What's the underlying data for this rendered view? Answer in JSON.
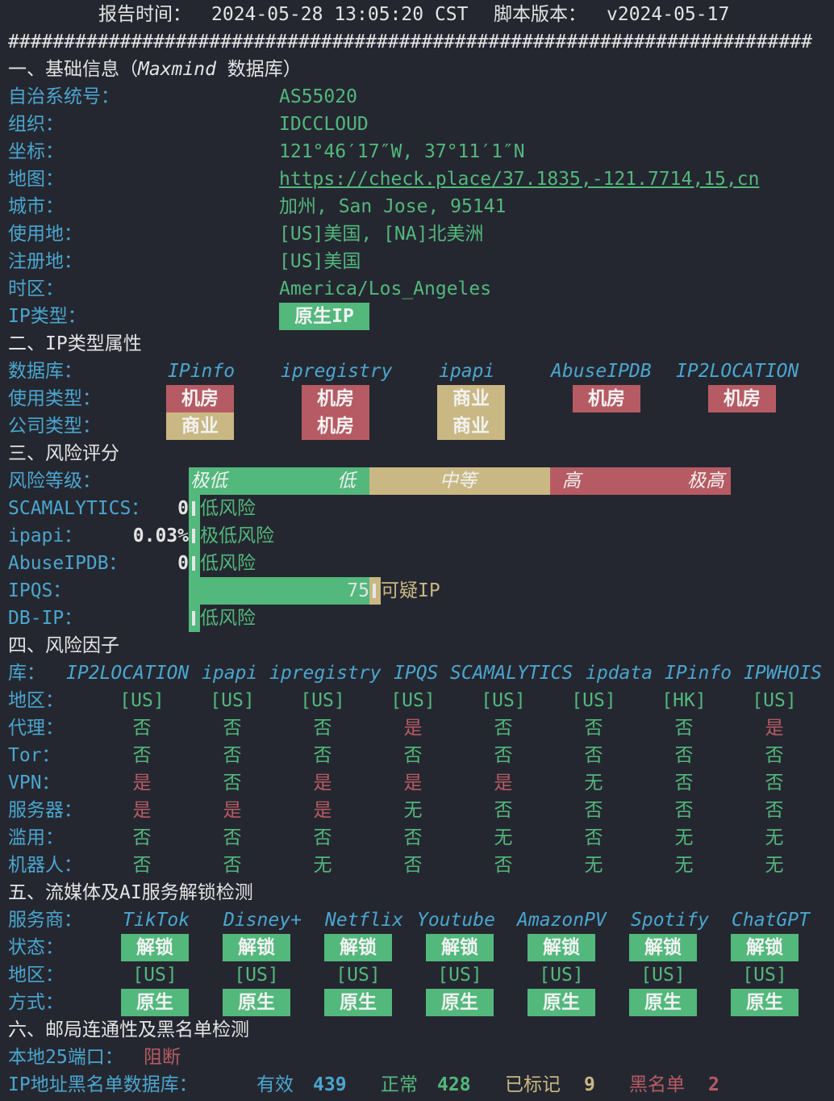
{
  "header": {
    "report_time_label": "报告时间：",
    "report_time": "2024-05-28 13:05:20 CST",
    "version_label": "脚本版本：",
    "version": "v2024-05-17",
    "separator": "########################################################################"
  },
  "basic": {
    "title": "一、基础信息（",
    "title_italic": "Maxmind",
    "title_end": " 数据库）",
    "rows": [
      {
        "label": "自治系统号：",
        "value": "AS55020"
      },
      {
        "label": "组织：",
        "value": "IDCCLOUD"
      },
      {
        "label": "坐标：",
        "value": "121°46′17″W, 37°11′1″N"
      },
      {
        "label": "地图：",
        "value": "https://check.place/37.1835,-121.7714,15,cn"
      },
      {
        "label": "城市：",
        "value": "加州, San Jose, 95141"
      },
      {
        "label": "使用地：",
        "value": "[US]美国, [NA]北美洲"
      },
      {
        "label": "注册地：",
        "value": "[US]美国"
      },
      {
        "label": "时区：",
        "value": "America/Los_Angeles"
      },
      {
        "label": "IP类型：",
        "value": "原生IP"
      }
    ]
  },
  "ip_type": {
    "title": "二、IP类型属性",
    "db_label": "数据库：",
    "usage_label": "使用类型：",
    "company_label": "公司类型：",
    "databases": [
      "IPinfo",
      "ipregistry",
      "ipapi",
      "AbuseIPDB",
      "IP2LOCATION"
    ],
    "usage": [
      "机房",
      "机房",
      "商业",
      "机房",
      "机房"
    ],
    "company": [
      "商业",
      "机房",
      "商业"
    ]
  },
  "risk": {
    "title": "三、风险评分",
    "level_label": "风险等级：",
    "scale": [
      "极低",
      "低",
      "中等",
      "高",
      "极高"
    ],
    "rows": [
      {
        "label": "SCAMALYTICS：",
        "value": "0",
        "text": "低风险",
        "level": 0
      },
      {
        "label": "ipapi：",
        "value": "0.03%",
        "text": "极低风险",
        "level": 0
      },
      {
        "label": "AbuseIPDB：",
        "value": "0",
        "text": "低风险",
        "level": 0
      },
      {
        "label": "IPQS：",
        "value": "75",
        "text": "可疑IP",
        "level": 75
      },
      {
        "label": "DB-IP：",
        "value": "",
        "text": "低风险",
        "level": 0
      }
    ]
  },
  "factors": {
    "title": "四、风险因子",
    "db_label": "库：",
    "databases": [
      "IP2LOCATION",
      "ipapi",
      "ipregistry",
      "IPQS",
      "SCAMALYTICS",
      "ipdata",
      "IPinfo",
      "IPWHOIS"
    ],
    "rows": [
      {
        "label": "地区：",
        "values": [
          "[US]",
          "[US]",
          "[US]",
          "[US]",
          "[US]",
          "[US]",
          "[HK]",
          "[US]"
        ]
      },
      {
        "label": "代理：",
        "values": [
          "否",
          "否",
          "否",
          "是",
          "否",
          "否",
          "否",
          "是"
        ]
      },
      {
        "label": "Tor：",
        "values": [
          "否",
          "否",
          "否",
          "否",
          "否",
          "否",
          "否",
          "否"
        ]
      },
      {
        "label": "VPN：",
        "values": [
          "是",
          "否",
          "是",
          "是",
          "是",
          "无",
          "否",
          "否"
        ]
      },
      {
        "label": "服务器：",
        "values": [
          "是",
          "是",
          "是",
          "无",
          "否",
          "否",
          "否",
          "否"
        ]
      },
      {
        "label": "滥用：",
        "values": [
          "否",
          "否",
          "否",
          "否",
          "无",
          "否",
          "无",
          "无"
        ]
      },
      {
        "label": "机器人：",
        "values": [
          "否",
          "否",
          "无",
          "否",
          "否",
          "无",
          "无",
          "无"
        ]
      }
    ]
  },
  "streaming": {
    "title": "五、流媒体及AI服务解锁检测",
    "service_label": "服务商：",
    "status_label": "状态：",
    "region_label": "地区：",
    "method_label": "方式：",
    "services": [
      "TikTok",
      "Disney+",
      "Netflix",
      "Youtube",
      "AmazonPV",
      "Spotify",
      "ChatGPT"
    ],
    "status": [
      "解锁",
      "解锁",
      "解锁",
      "解锁",
      "解锁",
      "解锁",
      "解锁"
    ],
    "region": [
      "[US]",
      "[US]",
      "[US]",
      "[US]",
      "[US]",
      "[US]",
      "[US]"
    ],
    "method": [
      "原生",
      "原生",
      "原生",
      "原生",
      "原生",
      "原生",
      "原生"
    ]
  },
  "mail": {
    "title": "六、邮局连通性及黑名单检测",
    "port_label": "本地25端口：",
    "port_status": "阻断",
    "blacklist_label": "IP地址黑名单数据库：",
    "valid_label": "有效",
    "valid": "439",
    "normal_label": "正常",
    "normal": "428",
    "marked_label": "已标记",
    "marked": "9",
    "blacklisted_label": "黑名单",
    "blacklisted": "2"
  },
  "colors": {
    "background": "#252730",
    "label": "#4aa6cf",
    "good": "#52b87c",
    "warn": "#c9b883",
    "bad": "#b65b63"
  }
}
